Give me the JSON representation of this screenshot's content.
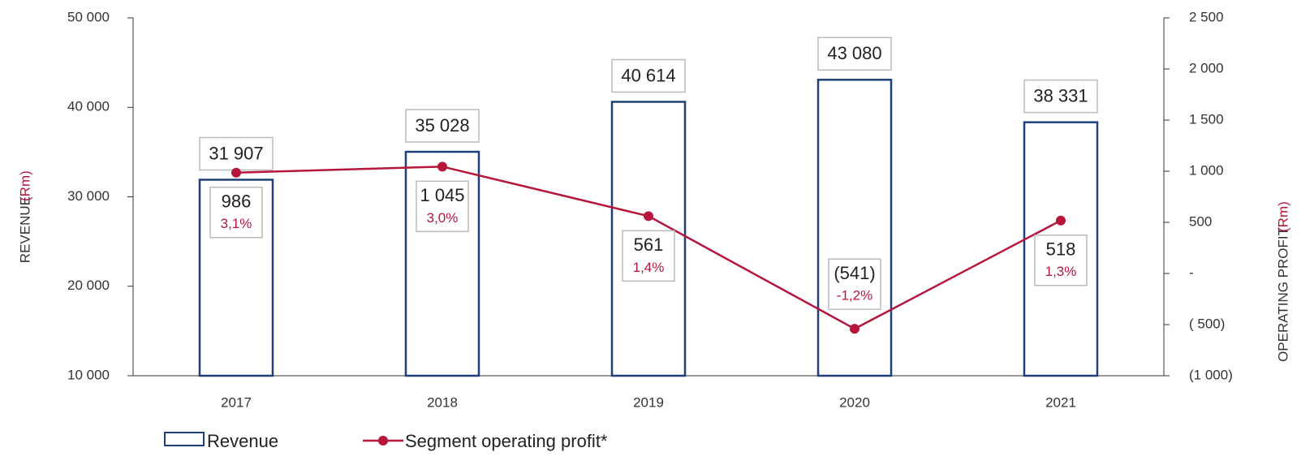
{
  "chart_data": {
    "type": "bar",
    "y_label": "REVENUE",
    "y_label_unit": "(Rm)",
    "y2_label": "OPERATING PROFIT",
    "y2_label_unit": "(Rm)",
    "categories": [
      "2017",
      "2018",
      "2019",
      "2020",
      "2021"
    ],
    "series": [
      {
        "name": "Revenue",
        "type": "bar",
        "color": "#1f3f7a",
        "values": [
          31907,
          35028,
          40614,
          43080,
          38331
        ],
        "value_labels": [
          "31 907",
          "35 028",
          "40 614",
          "43 080",
          "38 331"
        ]
      },
      {
        "name": "Segment operating profit*",
        "type": "line",
        "axis": "y2",
        "color": "#b5163a",
        "values": [
          986,
          1045,
          561,
          -541,
          518
        ],
        "value_labels": [
          "986",
          "1 045",
          "561",
          "(541)",
          "518"
        ],
        "margins": [
          3.1,
          3.0,
          1.4,
          -1.2,
          1.3
        ],
        "margin_labels": [
          "3,1%",
          "3,0%",
          "1,4%",
          "-1,2%",
          "1,3%"
        ]
      }
    ],
    "ylim": [
      10000,
      50000
    ],
    "yticks": [
      {
        "value": 10000,
        "label": "10 000"
      },
      {
        "value": 20000,
        "label": "20 000"
      },
      {
        "value": 30000,
        "label": "30 000"
      },
      {
        "value": 40000,
        "label": "40 000"
      },
      {
        "value": 50000,
        "label": "50 000"
      }
    ],
    "y2lim": [
      -1000,
      2500
    ],
    "y2ticks": [
      {
        "value": -1000,
        "label": "(1 000)"
      },
      {
        "value": -500,
        "label": "( 500)"
      },
      {
        "value": 0,
        "label": "-"
      },
      500,
      {
        "value": 1000,
        "label": "1 000"
      },
      {
        "value": 1500,
        "label": "1 500"
      },
      {
        "value": 2000,
        "label": "2 000"
      },
      {
        "value": 2500,
        "label": "2 500"
      }
    ],
    "grid": false,
    "legend": "bottom"
  }
}
